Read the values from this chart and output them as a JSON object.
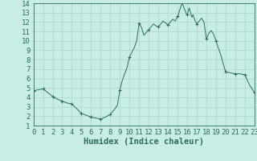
{
  "x": [
    0,
    0.5,
    1,
    1.5,
    2,
    2.5,
    3,
    3.5,
    4,
    4.5,
    5,
    5.5,
    6,
    6.5,
    7,
    7.5,
    8,
    8.25,
    8.5,
    8.75,
    9,
    9.25,
    9.5,
    9.75,
    10,
    10.25,
    10.5,
    10.75,
    11,
    11.25,
    11.5,
    11.75,
    12,
    12.25,
    12.5,
    12.75,
    13,
    13.25,
    13.5,
    13.75,
    14,
    14.25,
    14.5,
    14.75,
    15,
    15.1,
    15.2,
    15.3,
    15.4,
    15.5,
    15.6,
    15.7,
    15.8,
    15.9,
    16,
    16.1,
    16.2,
    16.3,
    16.4,
    16.5,
    16.6,
    16.7,
    16.8,
    16.9,
    17,
    17.25,
    17.5,
    17.75,
    18,
    18.25,
    18.5,
    18.75,
    19,
    19.5,
    20,
    20.5,
    21,
    21.5,
    22,
    22.5,
    23
  ],
  "y": [
    4.7,
    4.8,
    4.9,
    4.5,
    4.1,
    3.8,
    3.6,
    3.4,
    3.3,
    2.8,
    2.3,
    2.1,
    1.9,
    1.8,
    1.7,
    1.9,
    2.2,
    2.5,
    2.8,
    3.2,
    4.8,
    5.8,
    6.5,
    7.2,
    8.3,
    8.8,
    9.3,
    10.0,
    11.9,
    11.4,
    10.6,
    10.9,
    11.2,
    11.5,
    11.8,
    11.6,
    11.5,
    11.8,
    12.1,
    11.9,
    11.7,
    12.0,
    12.3,
    12.1,
    12.6,
    12.8,
    13.2,
    13.5,
    13.8,
    14.0,
    13.7,
    13.4,
    13.2,
    12.9,
    12.8,
    13.1,
    13.5,
    13.2,
    12.8,
    12.5,
    12.8,
    12.5,
    12.2,
    12.0,
    11.8,
    12.1,
    12.4,
    12.0,
    10.2,
    10.8,
    11.1,
    10.7,
    10.0,
    8.5,
    6.7,
    6.6,
    6.5,
    6.5,
    6.4,
    5.3,
    4.5
  ],
  "marker_x": [
    0,
    1,
    2,
    3,
    4,
    5,
    6,
    7,
    8,
    9,
    10,
    11,
    12,
    13,
    14,
    15,
    16,
    17,
    18,
    19,
    20,
    21,
    22,
    23
  ],
  "marker_y": [
    4.7,
    4.9,
    4.1,
    3.6,
    3.3,
    2.3,
    1.9,
    1.7,
    2.2,
    4.8,
    8.3,
    11.9,
    11.2,
    11.5,
    11.7,
    12.6,
    12.8,
    11.8,
    10.2,
    10.0,
    6.7,
    6.5,
    6.4,
    4.5
  ],
  "line_color": "#2d6e5e",
  "marker_color": "#2d6e5e",
  "bg_color": "#c8ece6",
  "grid_color": "#aad4cc",
  "xlabel": "Humidex (Indice chaleur)",
  "xlim": [
    0,
    23
  ],
  "ylim": [
    1,
    14
  ],
  "xticks": [
    0,
    1,
    2,
    3,
    4,
    5,
    6,
    7,
    8,
    9,
    10,
    11,
    12,
    13,
    14,
    15,
    16,
    17,
    18,
    19,
    20,
    21,
    22,
    23
  ],
  "yticks": [
    1,
    2,
    3,
    4,
    5,
    6,
    7,
    8,
    9,
    10,
    11,
    12,
    13,
    14
  ],
  "xlabel_fontsize": 7.5,
  "tick_fontsize": 6.5
}
